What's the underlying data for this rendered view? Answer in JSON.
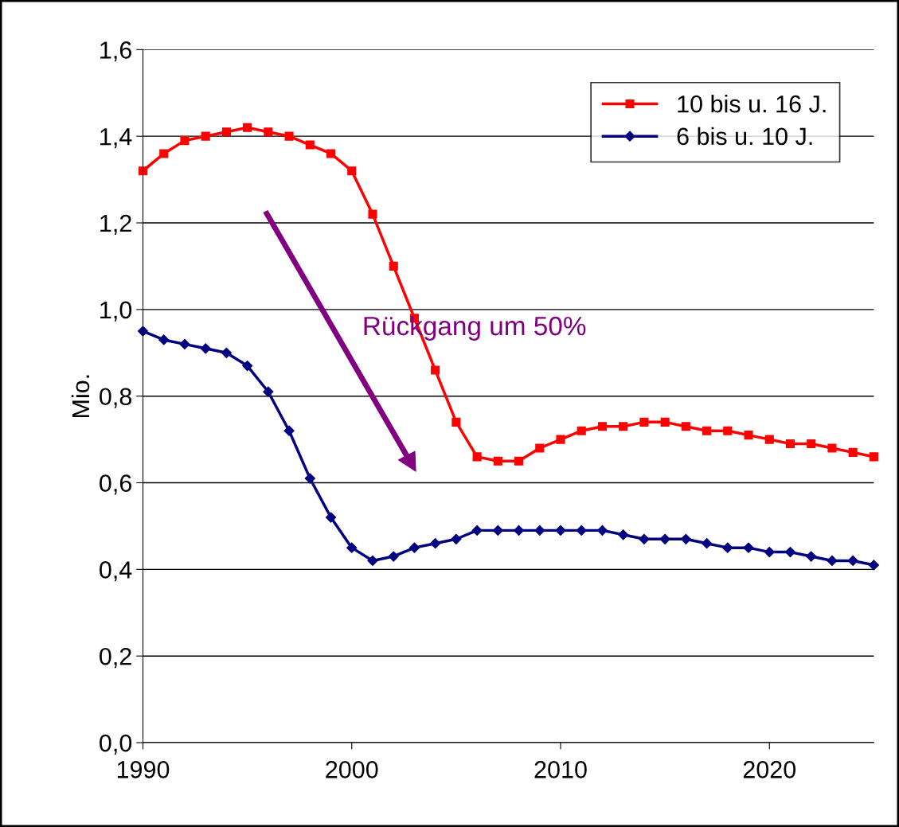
{
  "chart_data": {
    "type": "line",
    "ylabel": "Mio.",
    "x": [
      1990,
      1991,
      1992,
      1993,
      1994,
      1995,
      1996,
      1997,
      1998,
      1999,
      2000,
      2001,
      2002,
      2003,
      2004,
      2005,
      2006,
      2007,
      2008,
      2009,
      2010,
      2011,
      2012,
      2013,
      2014,
      2015,
      2016,
      2017,
      2018,
      2019,
      2020,
      2021,
      2022,
      2023,
      2024,
      2025
    ],
    "series": [
      {
        "name": "10 bis u. 16 J.",
        "color": "#ff0000",
        "marker": "square",
        "values": [
          1.32,
          1.36,
          1.39,
          1.4,
          1.41,
          1.42,
          1.41,
          1.4,
          1.38,
          1.36,
          1.32,
          1.22,
          1.1,
          0.98,
          0.86,
          0.74,
          0.66,
          0.65,
          0.65,
          0.68,
          0.7,
          0.72,
          0.73,
          0.73,
          0.74,
          0.74,
          0.73,
          0.72,
          0.72,
          0.71,
          0.7,
          0.69,
          0.69,
          0.68,
          0.67,
          0.66
        ]
      },
      {
        "name": "6 bis u. 10 J.",
        "color": "#000080",
        "marker": "diamond",
        "values": [
          0.95,
          0.93,
          0.92,
          0.91,
          0.9,
          0.87,
          0.81,
          0.72,
          0.61,
          0.52,
          0.45,
          0.42,
          0.43,
          0.45,
          0.46,
          0.47,
          0.49,
          0.49,
          0.49,
          0.49,
          0.49,
          0.49,
          0.49,
          0.48,
          0.47,
          0.47,
          0.47,
          0.46,
          0.45,
          0.45,
          0.44,
          0.44,
          0.43,
          0.42,
          0.42,
          0.41
        ]
      }
    ],
    "xlim": [
      1990,
      2025
    ],
    "xticks": [
      1990,
      2000,
      2010,
      2020
    ],
    "ylim": [
      0,
      1.6
    ],
    "yticks": [
      {
        "value": 0,
        "label": "0,0"
      },
      {
        "value": 0.2,
        "label": "0,2"
      },
      {
        "value": 0.4,
        "label": "0,4"
      },
      {
        "value": 0.6,
        "label": "0,6"
      },
      {
        "value": 0.8,
        "label": "0,8"
      },
      {
        "value": 1.0,
        "label": "1,0"
      },
      {
        "value": 1.2,
        "label": "1,2"
      },
      {
        "value": 1.4,
        "label": "1,4"
      },
      {
        "value": 1.6,
        "label": "1,6"
      }
    ],
    "grid": "y",
    "legend": "top right",
    "annotations": [
      "Rückgang um 50%"
    ]
  }
}
